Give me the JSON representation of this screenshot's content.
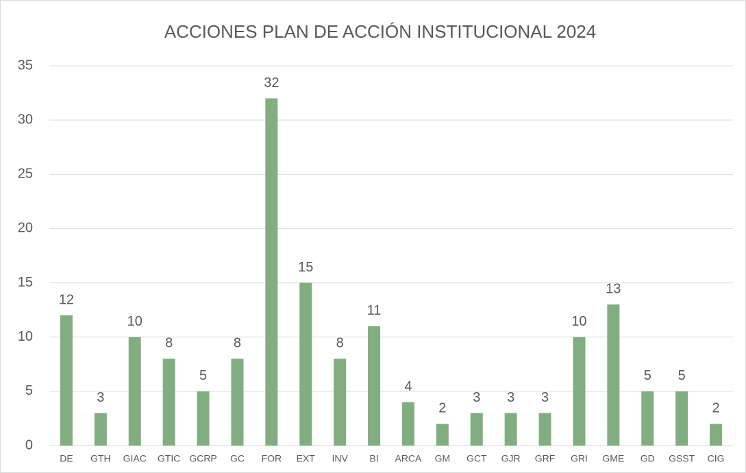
{
  "chart_data": {
    "type": "bar",
    "title": "ACCIONES PLAN DE ACCIÓN INSTITUCIONAL 2024",
    "categories": [
      "DE",
      "GTH",
      "GIAC",
      "GTIC",
      "GCRP",
      "GC",
      "FOR",
      "EXT",
      "INV",
      "BI",
      "ARCA",
      "GM",
      "GCT",
      "GJR",
      "GRF",
      "GRI",
      "GME",
      "GD",
      "GSST",
      "CIG"
    ],
    "values": [
      12,
      3,
      10,
      8,
      5,
      8,
      32,
      15,
      8,
      11,
      4,
      2,
      3,
      3,
      3,
      10,
      13,
      5,
      5,
      2
    ],
    "color": "#82ad80",
    "ylim": [
      0,
      35
    ],
    "yticks": [
      0,
      5,
      10,
      15,
      20,
      25,
      30,
      35
    ],
    "grid": true
  }
}
